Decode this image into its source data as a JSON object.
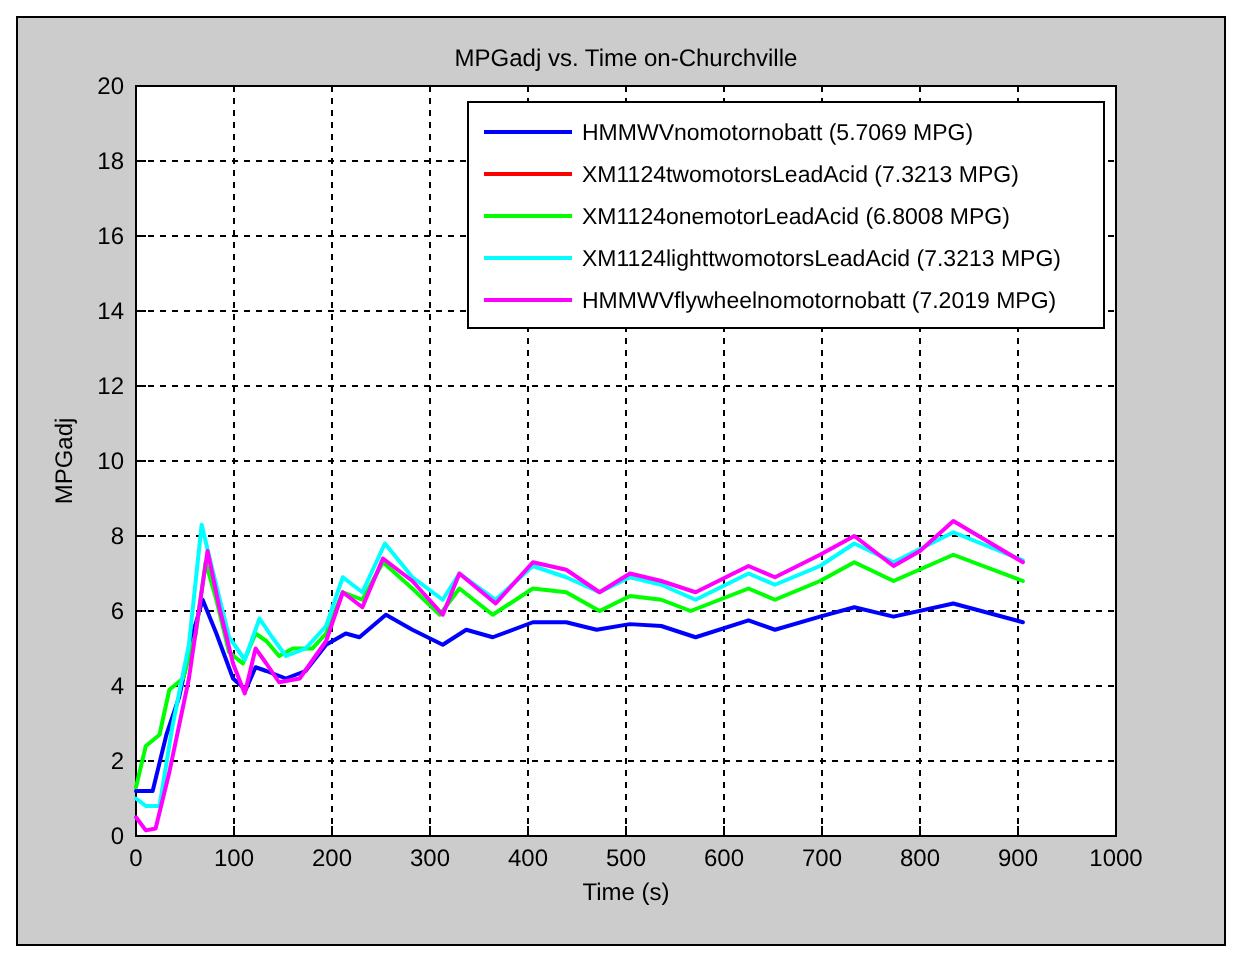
{
  "chart_data": {
    "type": "line",
    "title": "MPGadj vs. Time on-Churchville",
    "xlabel": "Time (s)",
    "ylabel": "MPGadj",
    "xlim": [
      0,
      1000
    ],
    "xticks": [
      0,
      100,
      200,
      300,
      400,
      500,
      600,
      700,
      800,
      900,
      1000
    ],
    "ylim": [
      0,
      20
    ],
    "yticks": [
      0,
      2,
      4,
      6,
      8,
      10,
      12,
      14,
      16,
      18,
      20
    ],
    "grid": true,
    "legend": "top right",
    "series": [
      {
        "name": "HMMWVnomotornobatt (5.7069 MPG)",
        "color": "#0000ff",
        "x": [
          0,
          17,
          31,
          44,
          58,
          68,
          82,
          99,
          112,
          122,
          133,
          153,
          173,
          194,
          214,
          228,
          255,
          282,
          313,
          337,
          364,
          405,
          439,
          470,
          504,
          536,
          571,
          625,
          652,
          698,
          733,
          773,
          834,
          905
        ],
        "values": [
          1.2,
          1.2,
          2.7,
          3.7,
          5.4,
          6.3,
          5.4,
          4.2,
          3.9,
          4.5,
          4.4,
          4.2,
          4.4,
          5.1,
          5.4,
          5.3,
          5.9,
          5.5,
          5.1,
          5.5,
          5.3,
          5.7,
          5.7,
          5.5,
          5.65,
          5.6,
          5.3,
          5.75,
          5.5,
          5.85,
          6.1,
          5.85,
          6.2,
          5.7
        ]
      },
      {
        "name": "XM1124twomotorsLeadAcid (7.3213 MPG)",
        "color": "#ff0000"
      },
      {
        "name": "XM1124onemotorLeadAcid (6.8008 MPG)",
        "color": "#00ff00",
        "x": [
          0,
          10,
          24,
          34,
          48,
          61,
          71,
          82,
          95,
          109,
          122,
          133,
          146,
          160,
          180,
          194,
          211,
          231,
          252,
          282,
          310,
          330,
          364,
          405,
          439,
          473,
          504,
          536,
          566,
          625,
          652,
          698,
          733,
          773,
          834,
          905
        ],
        "values": [
          1.3,
          2.4,
          2.7,
          3.9,
          4.2,
          5.4,
          7.3,
          6.3,
          4.9,
          4.6,
          5.4,
          5.2,
          4.8,
          5.0,
          5.0,
          5.4,
          6.5,
          6.3,
          7.3,
          6.6,
          5.9,
          6.6,
          5.9,
          6.6,
          6.5,
          6.0,
          6.4,
          6.3,
          6.0,
          6.6,
          6.3,
          6.8,
          7.3,
          6.8,
          7.5,
          6.8
        ]
      },
      {
        "name": "XM1124lighttwomotorsLeadAcid (7.3213 MPG)",
        "color": "#00ffff",
        "x": [
          0,
          10,
          24,
          37,
          54,
          67,
          78,
          95,
          111,
          126,
          139,
          153,
          173,
          194,
          211,
          231,
          254,
          282,
          313,
          330,
          367,
          405,
          439,
          473,
          504,
          536,
          571,
          625,
          652,
          698,
          733,
          773,
          834,
          905
        ],
        "values": [
          1.0,
          0.8,
          0.8,
          2.9,
          5.1,
          8.3,
          7.1,
          5.3,
          4.7,
          5.8,
          5.3,
          4.8,
          5.0,
          5.6,
          6.9,
          6.5,
          7.8,
          6.9,
          6.3,
          7.0,
          6.3,
          7.2,
          6.9,
          6.5,
          6.9,
          6.7,
          6.3,
          7.0,
          6.7,
          7.2,
          7.8,
          7.3,
          8.1,
          7.35
        ]
      },
      {
        "name": "HMMWVflywheelnomotornobatt (7.2019 MPG)",
        "color": "#ff00ff",
        "x": [
          0,
          10,
          20,
          34,
          54,
          73,
          85,
          99,
          111,
          122,
          133,
          146,
          167,
          194,
          211,
          231,
          252,
          282,
          313,
          330,
          367,
          405,
          439,
          473,
          504,
          536,
          571,
          625,
          652,
          698,
          733,
          773,
          800,
          834,
          905
        ],
        "values": [
          0.5,
          0.15,
          0.2,
          1.7,
          4.2,
          7.6,
          6.1,
          4.6,
          3.8,
          5.0,
          4.6,
          4.1,
          4.2,
          5.2,
          6.5,
          6.1,
          7.4,
          6.8,
          5.9,
          7.0,
          6.2,
          7.3,
          7.1,
          6.5,
          7.0,
          6.8,
          6.5,
          7.2,
          6.9,
          7.5,
          8.0,
          7.2,
          7.6,
          8.4,
          7.3
        ]
      }
    ]
  }
}
